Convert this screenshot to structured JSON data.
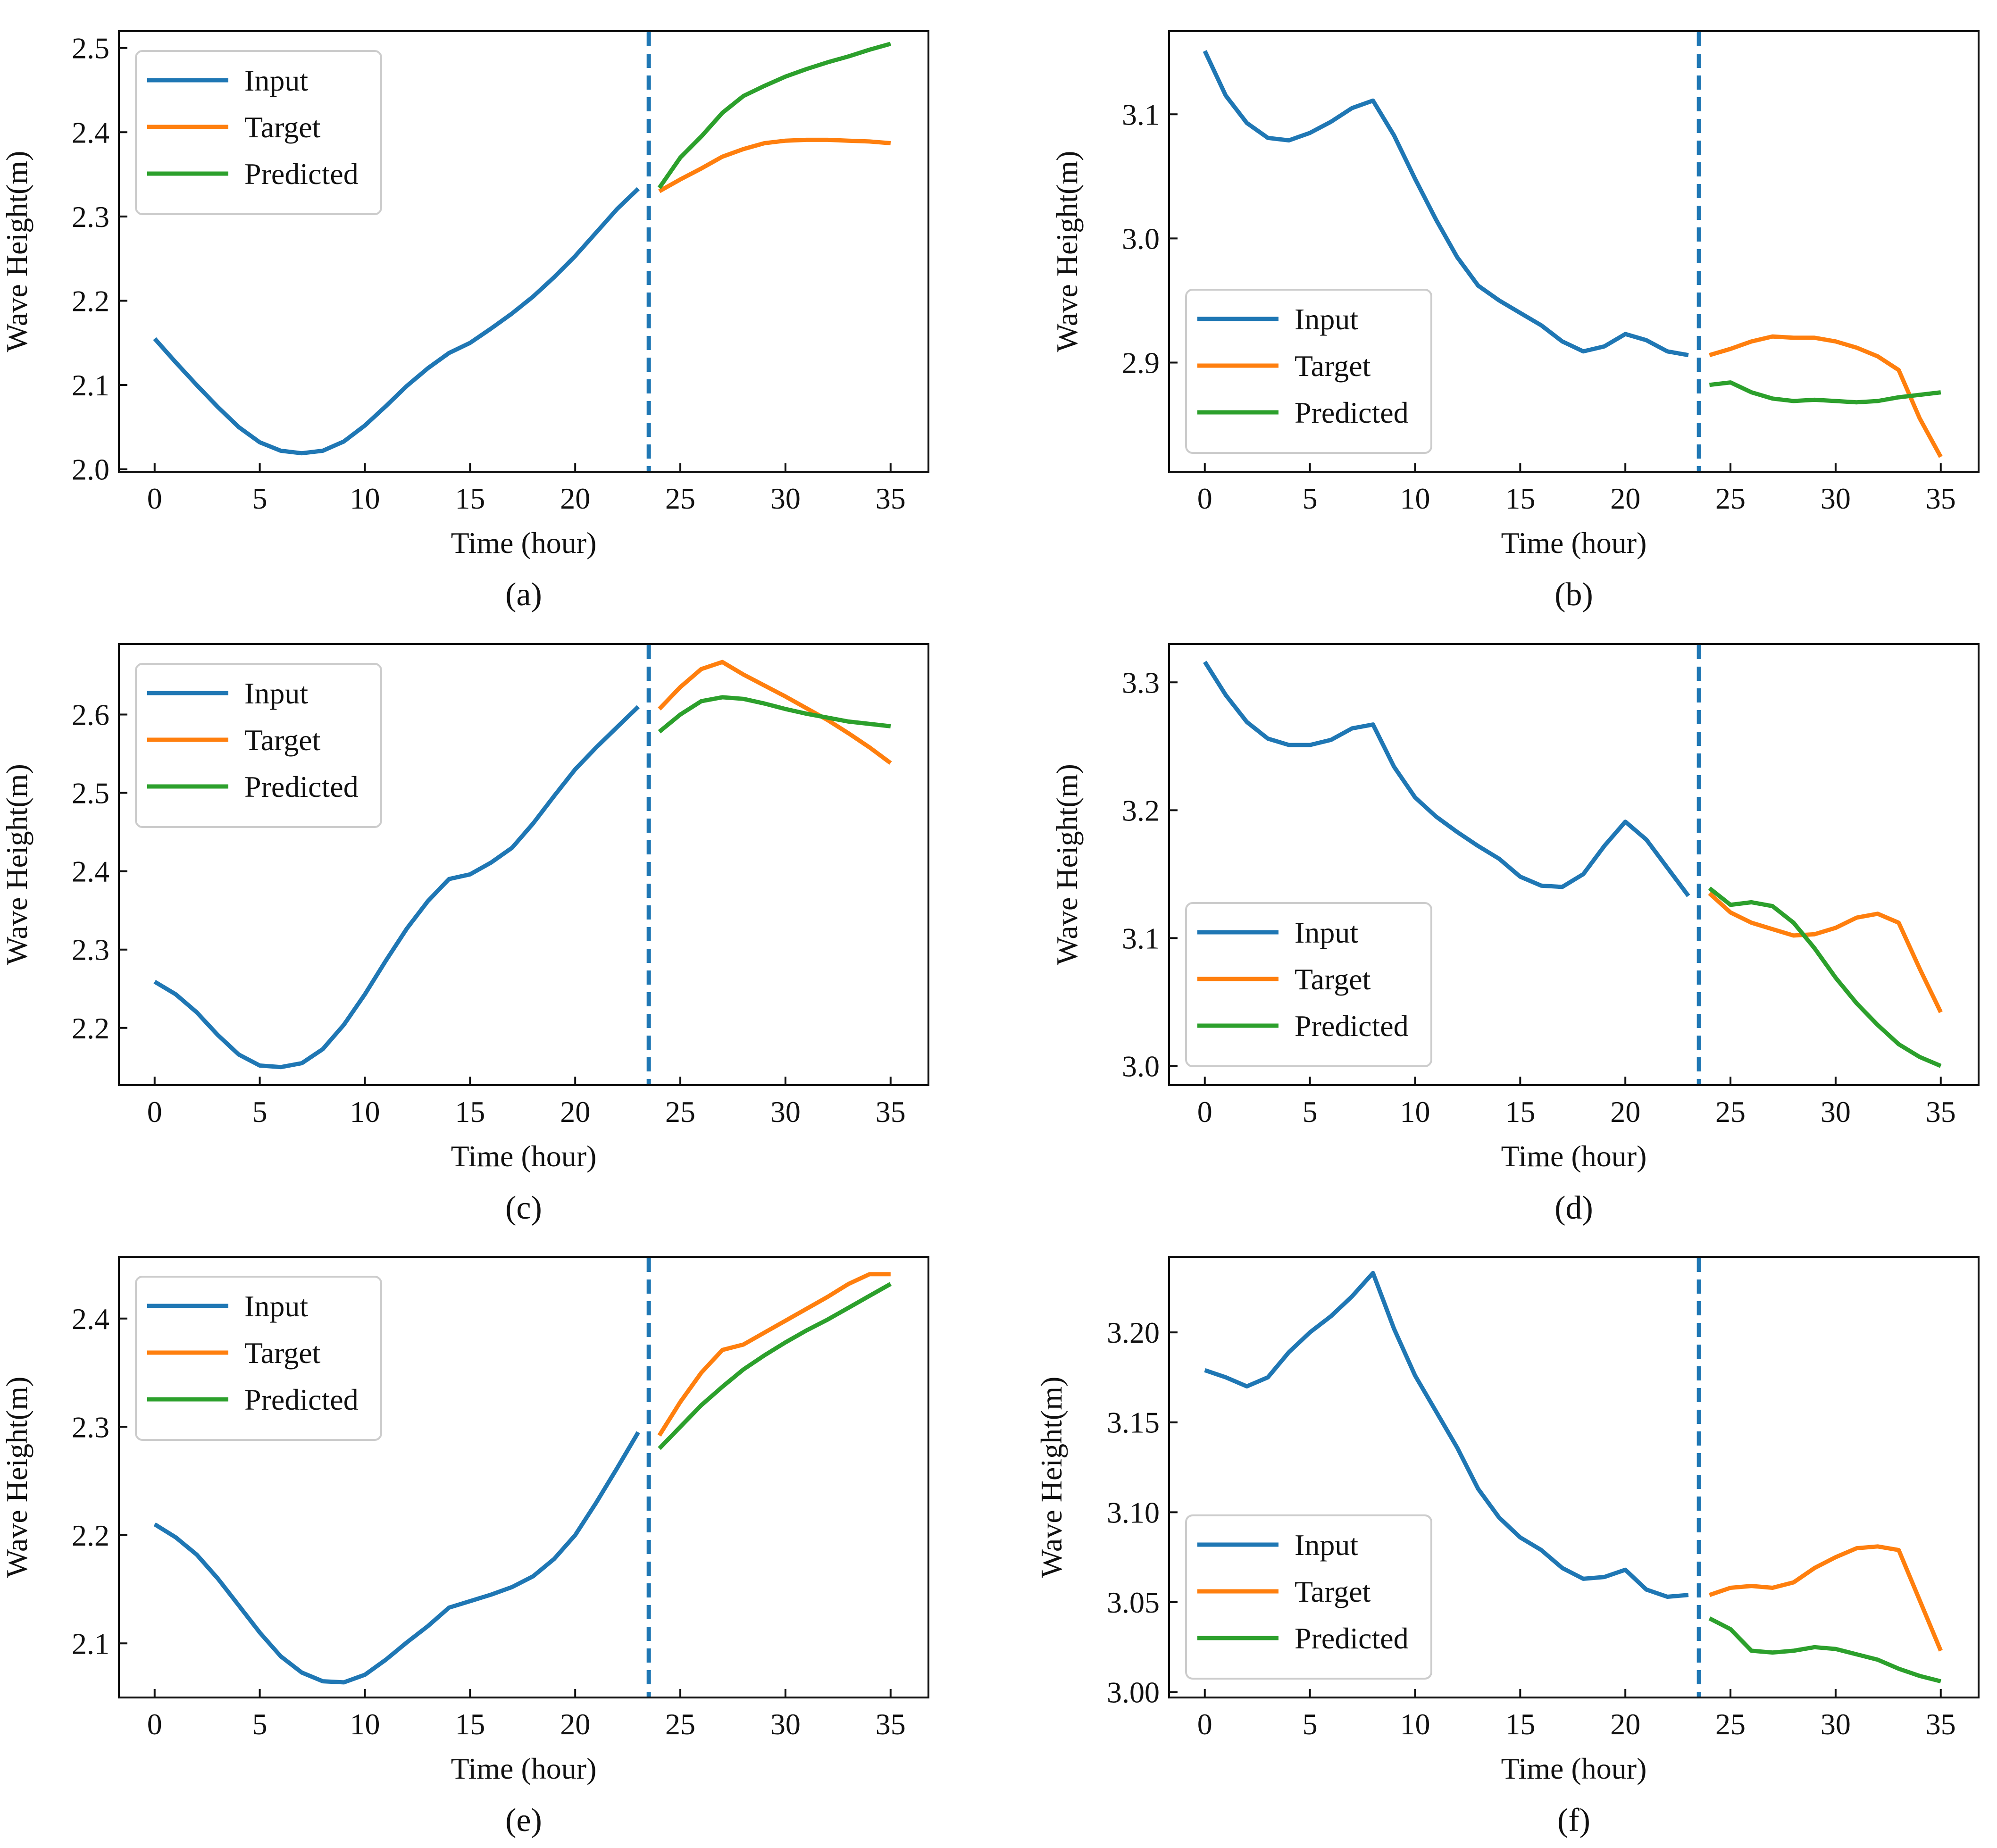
{
  "figure": {
    "colors": {
      "input": "#1f77b4",
      "target": "#ff7f0e",
      "predicted": "#2ca02c",
      "divider": "#1f77b4",
      "axes": "#111111"
    }
  },
  "chart_data": [
    {
      "type": "line",
      "panel_label": "(a)",
      "xlabel": "Time (hour)",
      "ylabel": "Wave Height(m)",
      "xlim": [
        -1.7,
        36.8
      ],
      "ylim": [
        1.997,
        2.52
      ],
      "xticks": [
        0,
        5,
        10,
        15,
        20,
        25,
        30,
        35
      ],
      "yticks": [
        2.0,
        2.1,
        2.2,
        2.3,
        2.4,
        2.5
      ],
      "ytick_labels": [
        "2.0",
        "2.1",
        "2.2",
        "2.3",
        "2.4",
        "2.5"
      ],
      "divider_x": 23.5,
      "legend_position": "top-left",
      "series": [
        {
          "name": "Input",
          "color_key": "input",
          "x": [
            0,
            1,
            2,
            3,
            4,
            5,
            6,
            7,
            8,
            9,
            10,
            11,
            12,
            13,
            14,
            15,
            16,
            17,
            18,
            19,
            20,
            21,
            22,
            23
          ],
          "values": [
            2.155,
            2.127,
            2.1,
            2.074,
            2.05,
            2.032,
            2.022,
            2.019,
            2.022,
            2.033,
            2.052,
            2.075,
            2.099,
            2.12,
            2.138,
            2.15,
            2.167,
            2.185,
            2.205,
            2.228,
            2.253,
            2.281,
            2.309,
            2.333
          ]
        },
        {
          "name": "Target",
          "color_key": "target",
          "x": [
            24,
            25,
            26,
            27,
            28,
            29,
            30,
            31,
            32,
            33,
            34,
            35
          ],
          "values": [
            2.33,
            2.344,
            2.357,
            2.371,
            2.38,
            2.387,
            2.39,
            2.391,
            2.391,
            2.39,
            2.389,
            2.387
          ]
        },
        {
          "name": "Predicted",
          "color_key": "predicted",
          "x": [
            24,
            25,
            26,
            27,
            28,
            29,
            30,
            31,
            32,
            33,
            34,
            35
          ],
          "values": [
            2.334,
            2.37,
            2.395,
            2.423,
            2.443,
            2.455,
            2.466,
            2.475,
            2.483,
            2.49,
            2.498,
            2.505
          ]
        }
      ]
    },
    {
      "type": "line",
      "panel_label": "(b)",
      "xlabel": "Time (hour)",
      "ylabel": "Wave Height(m)",
      "xlim": [
        -1.7,
        36.8
      ],
      "ylim": [
        2.812,
        3.167
      ],
      "xticks": [
        0,
        5,
        10,
        15,
        20,
        25,
        30,
        35
      ],
      "yticks": [
        2.9,
        3.0,
        3.1
      ],
      "ytick_labels": [
        "2.9",
        "3.0",
        "3.1"
      ],
      "divider_x": 23.5,
      "legend_position": "center-left",
      "series": [
        {
          "name": "Input",
          "color_key": "input",
          "x": [
            0,
            1,
            2,
            3,
            4,
            5,
            6,
            7,
            8,
            9,
            10,
            11,
            12,
            13,
            14,
            15,
            16,
            17,
            18,
            19,
            20,
            21,
            22,
            23
          ],
          "values": [
            3.151,
            3.115,
            3.093,
            3.081,
            3.079,
            3.085,
            3.094,
            3.105,
            3.111,
            3.083,
            3.048,
            3.015,
            2.985,
            2.962,
            2.95,
            2.94,
            2.93,
            2.917,
            2.909,
            2.913,
            2.923,
            2.918,
            2.909,
            2.906
          ]
        },
        {
          "name": "Target",
          "color_key": "target",
          "x": [
            24,
            25,
            26,
            27,
            28,
            29,
            30,
            31,
            32,
            33,
            34,
            35
          ],
          "values": [
            2.906,
            2.911,
            2.917,
            2.921,
            2.92,
            2.92,
            2.917,
            2.912,
            2.905,
            2.894,
            2.855,
            2.824
          ]
        },
        {
          "name": "Predicted",
          "color_key": "predicted",
          "x": [
            24,
            25,
            26,
            27,
            28,
            29,
            30,
            31,
            32,
            33,
            34,
            35
          ],
          "values": [
            2.882,
            2.884,
            2.876,
            2.871,
            2.869,
            2.87,
            2.869,
            2.868,
            2.869,
            2.872,
            2.874,
            2.876
          ]
        }
      ]
    },
    {
      "type": "line",
      "panel_label": "(c)",
      "xlabel": "Time (hour)",
      "ylabel": "Wave Height(m)",
      "xlim": [
        -1.7,
        36.8
      ],
      "ylim": [
        2.127,
        2.69
      ],
      "xticks": [
        0,
        5,
        10,
        15,
        20,
        25,
        30,
        35
      ],
      "yticks": [
        2.2,
        2.3,
        2.4,
        2.5,
        2.6
      ],
      "ytick_labels": [
        "2.2",
        "2.3",
        "2.4",
        "2.5",
        "2.6"
      ],
      "divider_x": 23.5,
      "legend_position": "top-left",
      "series": [
        {
          "name": "Input",
          "color_key": "input",
          "x": [
            0,
            1,
            2,
            3,
            4,
            5,
            6,
            7,
            8,
            9,
            10,
            11,
            12,
            13,
            14,
            15,
            16,
            17,
            18,
            19,
            20,
            21,
            22,
            23
          ],
          "values": [
            2.259,
            2.243,
            2.22,
            2.191,
            2.166,
            2.152,
            2.15,
            2.155,
            2.173,
            2.204,
            2.243,
            2.286,
            2.327,
            2.362,
            2.39,
            2.396,
            2.411,
            2.43,
            2.461,
            2.496,
            2.53,
            2.558,
            2.584,
            2.61
          ]
        },
        {
          "name": "Target",
          "color_key": "target",
          "x": [
            24,
            25,
            26,
            27,
            28,
            29,
            30,
            31,
            32,
            33,
            34,
            35
          ],
          "values": [
            2.607,
            2.635,
            2.658,
            2.667,
            2.651,
            2.637,
            2.623,
            2.608,
            2.593,
            2.576,
            2.558,
            2.538
          ]
        },
        {
          "name": "Predicted",
          "color_key": "predicted",
          "x": [
            24,
            25,
            26,
            27,
            28,
            29,
            30,
            31,
            32,
            33,
            34,
            35
          ],
          "values": [
            2.578,
            2.6,
            2.617,
            2.622,
            2.62,
            2.614,
            2.607,
            2.601,
            2.596,
            2.591,
            2.588,
            2.585
          ]
        }
      ]
    },
    {
      "type": "line",
      "panel_label": "(d)",
      "xlabel": "Time (hour)",
      "ylabel": "Wave Height(m)",
      "xlim": [
        -1.7,
        36.8
      ],
      "ylim": [
        2.985,
        3.33
      ],
      "xticks": [
        0,
        5,
        10,
        15,
        20,
        25,
        30,
        35
      ],
      "yticks": [
        3.0,
        3.1,
        3.2,
        3.3
      ],
      "ytick_labels": [
        "3.0",
        "3.1",
        "3.2",
        "3.3"
      ],
      "divider_x": 23.5,
      "legend_position": "bottom-left",
      "series": [
        {
          "name": "Input",
          "color_key": "input",
          "x": [
            0,
            1,
            2,
            3,
            4,
            5,
            6,
            7,
            8,
            9,
            10,
            11,
            12,
            13,
            14,
            15,
            16,
            17,
            18,
            19,
            20,
            21,
            22,
            23
          ],
          "values": [
            3.316,
            3.29,
            3.269,
            3.256,
            3.251,
            3.251,
            3.255,
            3.264,
            3.267,
            3.234,
            3.21,
            3.195,
            3.183,
            3.172,
            3.162,
            3.148,
            3.141,
            3.14,
            3.15,
            3.172,
            3.191,
            3.177,
            3.155,
            3.133
          ]
        },
        {
          "name": "Target",
          "color_key": "target",
          "x": [
            24,
            25,
            26,
            27,
            28,
            29,
            30,
            31,
            32,
            33,
            34,
            35
          ],
          "values": [
            3.135,
            3.12,
            3.112,
            3.107,
            3.102,
            3.103,
            3.108,
            3.116,
            3.119,
            3.112,
            3.076,
            3.042
          ]
        },
        {
          "name": "Predicted",
          "color_key": "predicted",
          "x": [
            24,
            25,
            26,
            27,
            28,
            29,
            30,
            31,
            32,
            33,
            34,
            35
          ],
          "values": [
            3.139,
            3.126,
            3.128,
            3.125,
            3.112,
            3.092,
            3.069,
            3.049,
            3.032,
            3.017,
            3.007,
            3.0
          ]
        }
      ]
    },
    {
      "type": "line",
      "panel_label": "(e)",
      "xlabel": "Time (hour)",
      "ylabel": "Wave Height(m)",
      "xlim": [
        -1.7,
        36.8
      ],
      "ylim": [
        2.05,
        2.457
      ],
      "xticks": [
        0,
        5,
        10,
        15,
        20,
        25,
        30,
        35
      ],
      "yticks": [
        2.1,
        2.2,
        2.3,
        2.4
      ],
      "ytick_labels": [
        "2.1",
        "2.2",
        "2.3",
        "2.4"
      ],
      "divider_x": 23.5,
      "legend_position": "top-left",
      "series": [
        {
          "name": "Input",
          "color_key": "input",
          "x": [
            0,
            1,
            2,
            3,
            4,
            5,
            6,
            7,
            8,
            9,
            10,
            11,
            12,
            13,
            14,
            15,
            16,
            17,
            18,
            19,
            20,
            21,
            22,
            23
          ],
          "values": [
            2.21,
            2.198,
            2.182,
            2.16,
            2.135,
            2.11,
            2.088,
            2.073,
            2.065,
            2.064,
            2.071,
            2.085,
            2.101,
            2.116,
            2.133,
            2.139,
            2.145,
            2.152,
            2.162,
            2.178,
            2.2,
            2.23,
            2.262,
            2.295
          ]
        },
        {
          "name": "Target",
          "color_key": "target",
          "x": [
            24,
            25,
            26,
            27,
            28,
            29,
            30,
            31,
            32,
            33,
            34,
            35
          ],
          "values": [
            2.292,
            2.323,
            2.35,
            2.371,
            2.376,
            2.387,
            2.398,
            2.409,
            2.42,
            2.432,
            2.441,
            2.441
          ]
        },
        {
          "name": "Predicted",
          "color_key": "predicted",
          "x": [
            24,
            25,
            26,
            27,
            28,
            29,
            30,
            31,
            32,
            33,
            34,
            35
          ],
          "values": [
            2.28,
            2.3,
            2.32,
            2.337,
            2.353,
            2.366,
            2.378,
            2.389,
            2.399,
            2.41,
            2.421,
            2.432
          ]
        }
      ]
    },
    {
      "type": "line",
      "panel_label": "(f)",
      "xlabel": "Time (hour)",
      "ylabel": "Wave Height(m)",
      "xlim": [
        -1.7,
        36.8
      ],
      "ylim": [
        2.997,
        3.242
      ],
      "xticks": [
        0,
        5,
        10,
        15,
        20,
        25,
        30,
        35
      ],
      "yticks": [
        3.0,
        3.05,
        3.1,
        3.15,
        3.2
      ],
      "ytick_labels": [
        "3.00",
        "3.05",
        "3.10",
        "3.15",
        "3.20"
      ],
      "divider_x": 23.5,
      "legend_position": "bottom-left",
      "series": [
        {
          "name": "Input",
          "color_key": "input",
          "x": [
            0,
            1,
            2,
            3,
            4,
            5,
            6,
            7,
            8,
            9,
            10,
            11,
            12,
            13,
            14,
            15,
            16,
            17,
            18,
            19,
            20,
            21,
            22,
            23
          ],
          "values": [
            3.179,
            3.175,
            3.17,
            3.175,
            3.189,
            3.2,
            3.209,
            3.22,
            3.233,
            3.202,
            3.176,
            3.156,
            3.136,
            3.113,
            3.097,
            3.086,
            3.079,
            3.069,
            3.063,
            3.064,
            3.068,
            3.057,
            3.053,
            3.054
          ]
        },
        {
          "name": "Target",
          "color_key": "target",
          "x": [
            24,
            25,
            26,
            27,
            28,
            29,
            30,
            31,
            32,
            33,
            34,
            35
          ],
          "values": [
            3.054,
            3.058,
            3.059,
            3.058,
            3.061,
            3.069,
            3.075,
            3.08,
            3.081,
            3.079,
            3.051,
            3.023
          ]
        },
        {
          "name": "Predicted",
          "color_key": "predicted",
          "x": [
            24,
            25,
            26,
            27,
            28,
            29,
            30,
            31,
            32,
            33,
            34,
            35
          ],
          "values": [
            3.041,
            3.035,
            3.023,
            3.022,
            3.023,
            3.025,
            3.024,
            3.021,
            3.018,
            3.013,
            3.009,
            3.006
          ]
        }
      ]
    }
  ]
}
